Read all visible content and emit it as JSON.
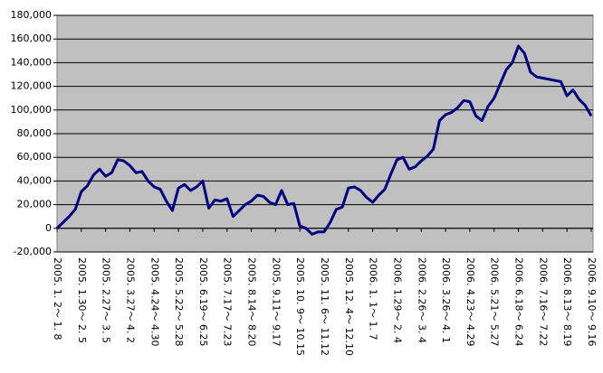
{
  "chart_data": {
    "type": "line",
    "categories": [
      "2005. 1. 2～ 1. 8",
      null,
      null,
      null,
      "2005. 1.30～ 2. 5",
      null,
      null,
      null,
      "2005. 2.27～ 3. 5",
      null,
      null,
      null,
      "2005. 3.27～ 4. 2",
      null,
      null,
      null,
      "2005. 4.24～ 4.30",
      null,
      null,
      null,
      "2005. 5.22～ 5.28",
      null,
      null,
      null,
      "2005. 6.19～ 6.25",
      null,
      null,
      null,
      "2005. 7.17～ 7.23",
      null,
      null,
      null,
      "2005. 8.14～ 8.20",
      null,
      null,
      null,
      "2005. 9.11～ 9.17",
      null,
      null,
      null,
      "2005. 10. 9～ 10.15",
      null,
      null,
      null,
      "2005. 11. 6～ 11.12",
      null,
      null,
      null,
      "2005. 12. 4～ 12.10",
      null,
      null,
      null,
      "2006. 1. 1～ 1. 7",
      null,
      null,
      null,
      "2006. 1.29～ 2. 4",
      null,
      null,
      null,
      "2006. 2.26～ 3. 4",
      null,
      null,
      null,
      "2006. 3.26～ 4. 1",
      null,
      null,
      null,
      "2006. 4.23～ 4.29",
      null,
      null,
      null,
      "2006. 5.21～ 5.27",
      null,
      null,
      null,
      "2006. 6.18～ 6.24",
      null,
      null,
      null,
      "2006. 7.16～ 7.22",
      null,
      null,
      null,
      "2006. 8.13～ 8.19",
      null,
      null,
      null,
      "2006. 9.10～ 9.16"
    ],
    "values": [
      0,
      5000,
      10000,
      16000,
      31000,
      36000,
      45000,
      50000,
      44000,
      47000,
      58000,
      57000,
      53000,
      47000,
      48000,
      40000,
      35000,
      33000,
      23000,
      15000,
      34000,
      37000,
      32000,
      35000,
      40000,
      17000,
      24000,
      23000,
      25000,
      10000,
      15000,
      20000,
      23000,
      28000,
      27000,
      22000,
      20000,
      32000,
      20000,
      21000,
      2000,
      0,
      -5000,
      -3000,
      -3000,
      5000,
      16000,
      18000,
      34000,
      35000,
      32000,
      26000,
      22000,
      28000,
      33000,
      46000,
      58000,
      60000,
      50000,
      52000,
      57000,
      61000,
      67000,
      91000,
      96000,
      98000,
      102000,
      108000,
      107000,
      95000,
      91000,
      103000,
      110000,
      122000,
      134000,
      140000,
      154000,
      148000,
      132000,
      128000,
      127000,
      126000,
      125000,
      124000,
      112000,
      117000,
      109000,
      104000,
      95000
    ],
    "color": "#000080",
    "ylim": [
      -20000,
      180000
    ],
    "yticks": [
      {
        "value": -20000,
        "label": "-20,000"
      },
      0,
      {
        "value": 20000,
        "label": "20,000"
      },
      {
        "value": 40000,
        "label": "40,000"
      },
      {
        "value": 60000,
        "label": "60,000"
      },
      {
        "value": 80000,
        "label": "80,000"
      },
      {
        "value": 100000,
        "label": "100,000"
      },
      {
        "value": 120000,
        "label": "120,000"
      },
      {
        "value": 140000,
        "label": "140,000"
      },
      {
        "value": 160000,
        "label": "160,000"
      },
      {
        "value": 180000,
        "label": "180,000"
      }
    ],
    "grid": true
  }
}
